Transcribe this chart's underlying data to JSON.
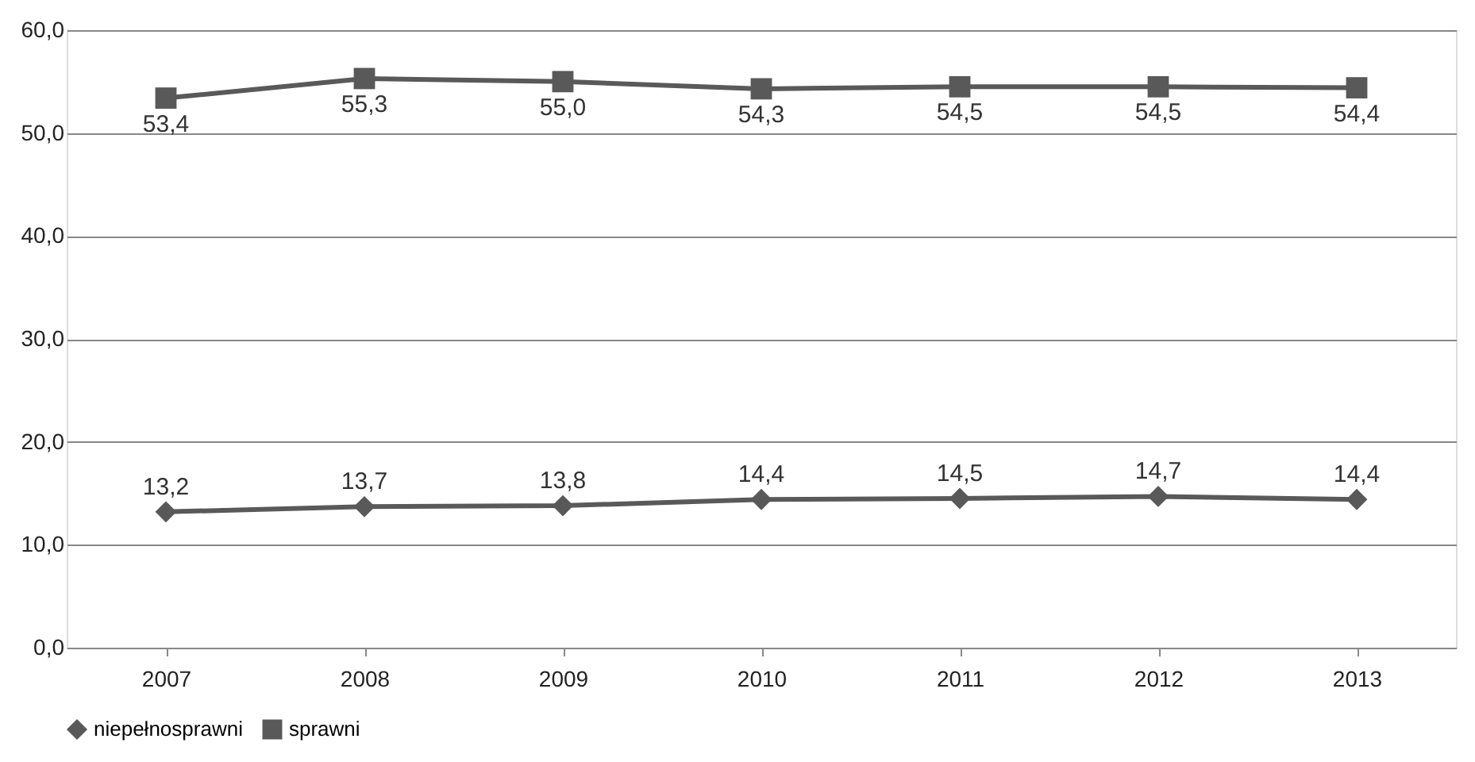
{
  "chart_data": {
    "type": "line",
    "categories": [
      "2007",
      "2008",
      "2009",
      "2010",
      "2011",
      "2012",
      "2013"
    ],
    "series": [
      {
        "name": "niepełnosprawni",
        "color": "#595959",
        "marker": "diamond",
        "values": [
          13.2,
          13.7,
          13.8,
          14.4,
          14.5,
          14.7,
          14.4
        ],
        "value_labels": [
          "13,2",
          "13,7",
          "13,8",
          "14,4",
          "14,5",
          "14,7",
          "14,4"
        ]
      },
      {
        "name": "sprawni",
        "color": "#595959",
        "marker": "square",
        "values": [
          53.4,
          55.3,
          55.0,
          54.3,
          54.5,
          54.5,
          54.4
        ],
        "value_labels": [
          "53,4",
          "55,3",
          "55,0",
          "54,3",
          "54,5",
          "54,5",
          "54,4"
        ]
      }
    ],
    "ylim": [
      0,
      60
    ],
    "yticks": [
      {
        "value": 0,
        "label": "0,0"
      },
      {
        "value": 10,
        "label": "10,0"
      },
      {
        "value": 20,
        "label": "20,0"
      },
      {
        "value": 30,
        "label": "30,0"
      },
      {
        "value": 40,
        "label": "40,0"
      },
      {
        "value": 50,
        "label": "50,0"
      },
      {
        "value": 60,
        "label": "60,0"
      }
    ],
    "grid": "y",
    "legend": "bottom"
  }
}
